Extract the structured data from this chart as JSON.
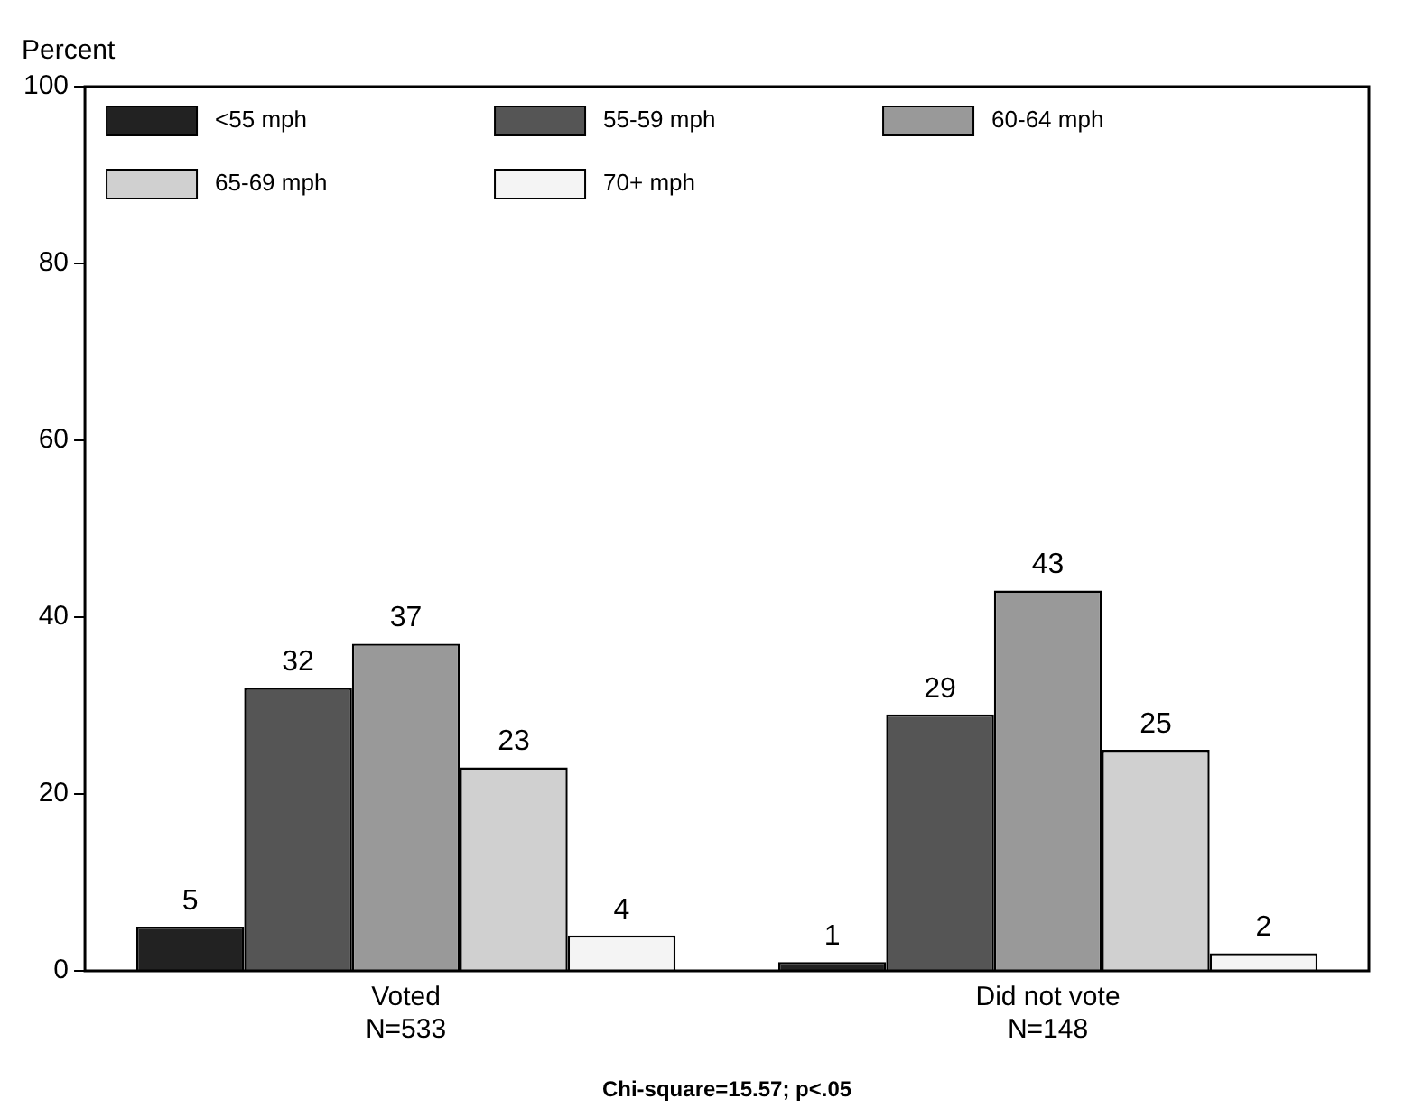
{
  "chart_data": {
    "type": "bar",
    "ylabel": "Percent",
    "categories": [
      "Voted\nN=533",
      "Did not vote\nN=148"
    ],
    "series": [
      {
        "name": "<55 mph",
        "color": "#222222",
        "values": [
          5,
          1
        ]
      },
      {
        "name": "55-59 mph",
        "color": "#555555",
        "values": [
          32,
          29
        ]
      },
      {
        "name": "60-64 mph",
        "color": "#999999",
        "values": [
          37,
          43
        ]
      },
      {
        "name": "65-69 mph",
        "color": "#d0d0d0",
        "values": [
          23,
          25
        ]
      },
      {
        "name": "70+ mph",
        "color": "#f4f4f4",
        "values": [
          4,
          2
        ]
      }
    ],
    "ylim": [
      0,
      100
    ],
    "yticks": [
      0,
      20,
      40,
      60,
      80,
      100
    ],
    "grid": false,
    "legend": "top left",
    "data_labels": true,
    "annotations": [
      "Chi-square=15.57; p<.05"
    ]
  }
}
